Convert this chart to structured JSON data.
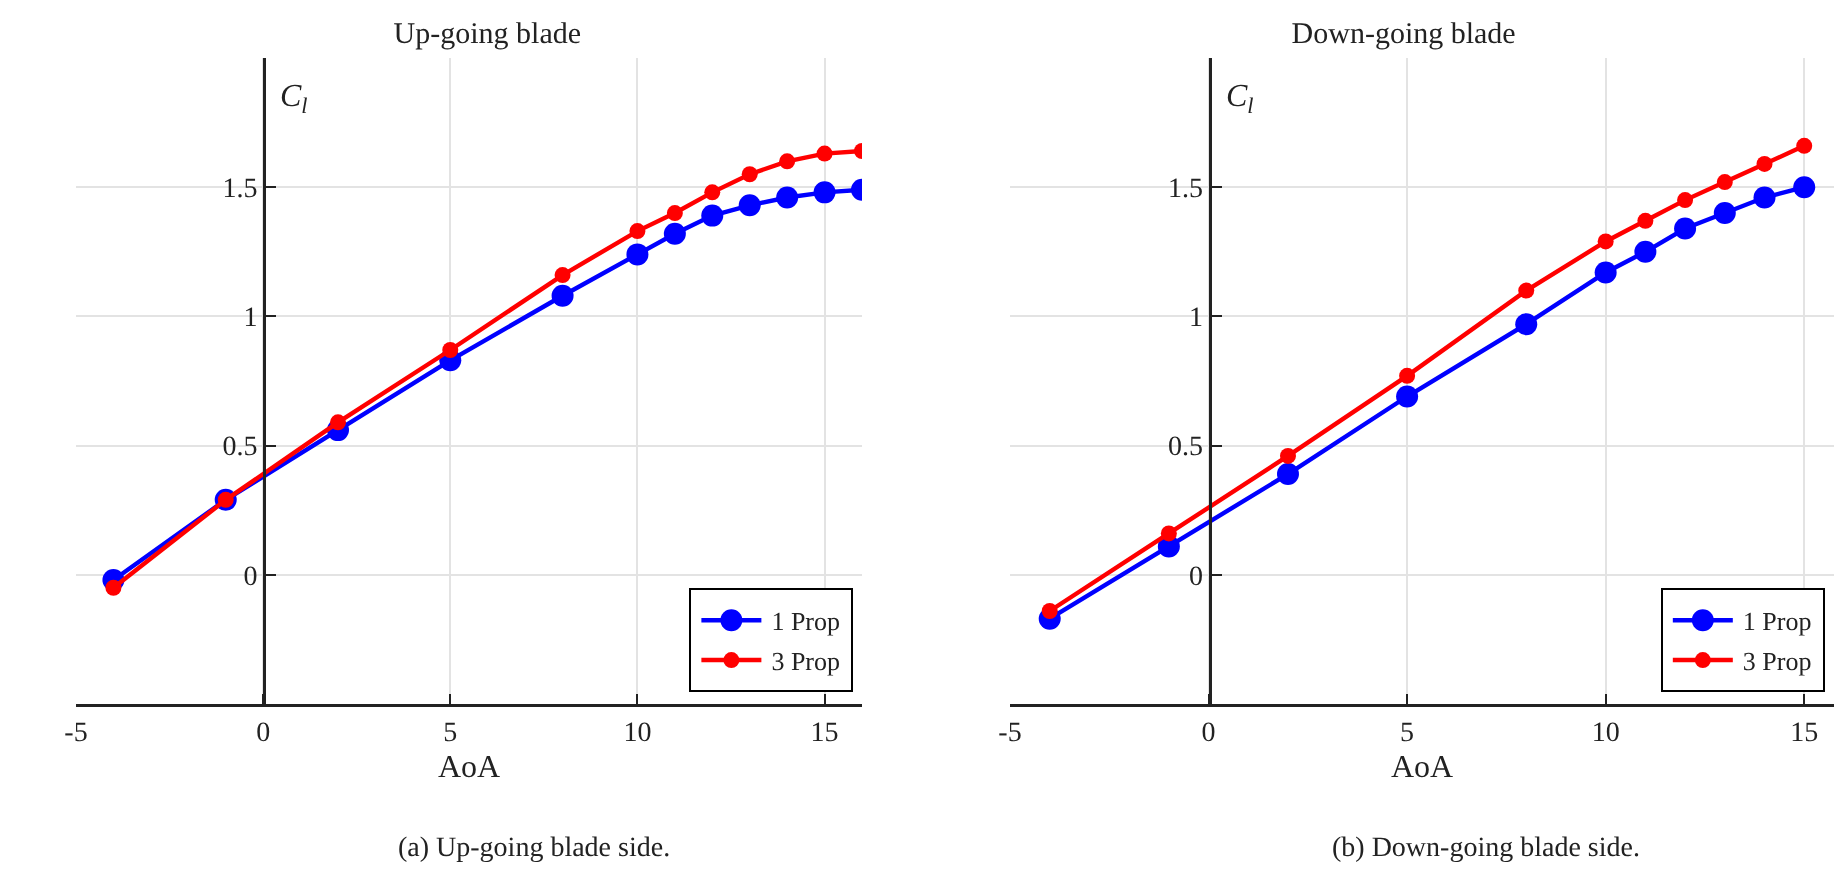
{
  "chart_data": [
    {
      "type": "line",
      "title": "Up-going blade",
      "xlabel": "AoA",
      "ylabel": "C$_{l}$",
      "annotations": [
        "(a) Up-going blade side."
      ],
      "xlim": [
        -5,
        16
      ],
      "ylim": [
        -0.5,
        2
      ],
      "xticks": [
        -5,
        0,
        5,
        10,
        15
      ],
      "yticks": [
        0,
        0.5,
        1,
        1.5
      ],
      "grid": true,
      "legend": "bottom right",
      "marker": "circle",
      "line_style": "solid",
      "series": [
        {
          "name": "1 Prop",
          "color": "#0000ff",
          "x": [
            -4,
            -1,
            2,
            5,
            8,
            10,
            11,
            12,
            13,
            14,
            15,
            16
          ],
          "values": [
            -0.02,
            0.29,
            0.56,
            0.83,
            1.08,
            1.24,
            1.32,
            1.39,
            1.43,
            1.46,
            1.48,
            1.49
          ]
        },
        {
          "name": "3 Prop",
          "color": "#ff0000",
          "x": [
            -4,
            -1,
            2,
            5,
            8,
            10,
            11,
            12,
            13,
            14,
            15,
            16
          ],
          "values": [
            -0.05,
            0.29,
            0.59,
            0.87,
            1.16,
            1.33,
            1.4,
            1.48,
            1.55,
            1.6,
            1.63,
            1.64
          ]
        }
      ]
    },
    {
      "type": "line",
      "title": "Down-going blade",
      "xlabel": "AoA",
      "ylabel": "C$_{l}$",
      "annotations": [
        "(b) Down-going blade side."
      ],
      "xlim": [
        -5,
        15.75
      ],
      "ylim": [
        -0.5,
        2
      ],
      "xticks": [
        -5,
        0,
        5,
        10,
        15
      ],
      "yticks": [
        0,
        0.5,
        1,
        1.5
      ],
      "grid": true,
      "legend": "bottom right",
      "marker": "circle",
      "line_style": "solid",
      "series": [
        {
          "name": "1 Prop",
          "color": "#0000ff",
          "x": [
            -4,
            -1,
            2,
            5,
            8,
            10,
            11,
            12,
            13,
            14,
            15
          ],
          "values": [
            -0.17,
            0.11,
            0.39,
            0.69,
            0.97,
            1.17,
            1.25,
            1.34,
            1.4,
            1.46,
            1.5
          ]
        },
        {
          "name": "3 Prop",
          "color": "#ff0000",
          "x": [
            -4,
            -1,
            2,
            5,
            8,
            10,
            11,
            12,
            13,
            14,
            15
          ],
          "values": [
            -0.14,
            0.16,
            0.46,
            0.77,
            1.1,
            1.29,
            1.37,
            1.45,
            1.52,
            1.59,
            1.66
          ]
        }
      ]
    }
  ]
}
